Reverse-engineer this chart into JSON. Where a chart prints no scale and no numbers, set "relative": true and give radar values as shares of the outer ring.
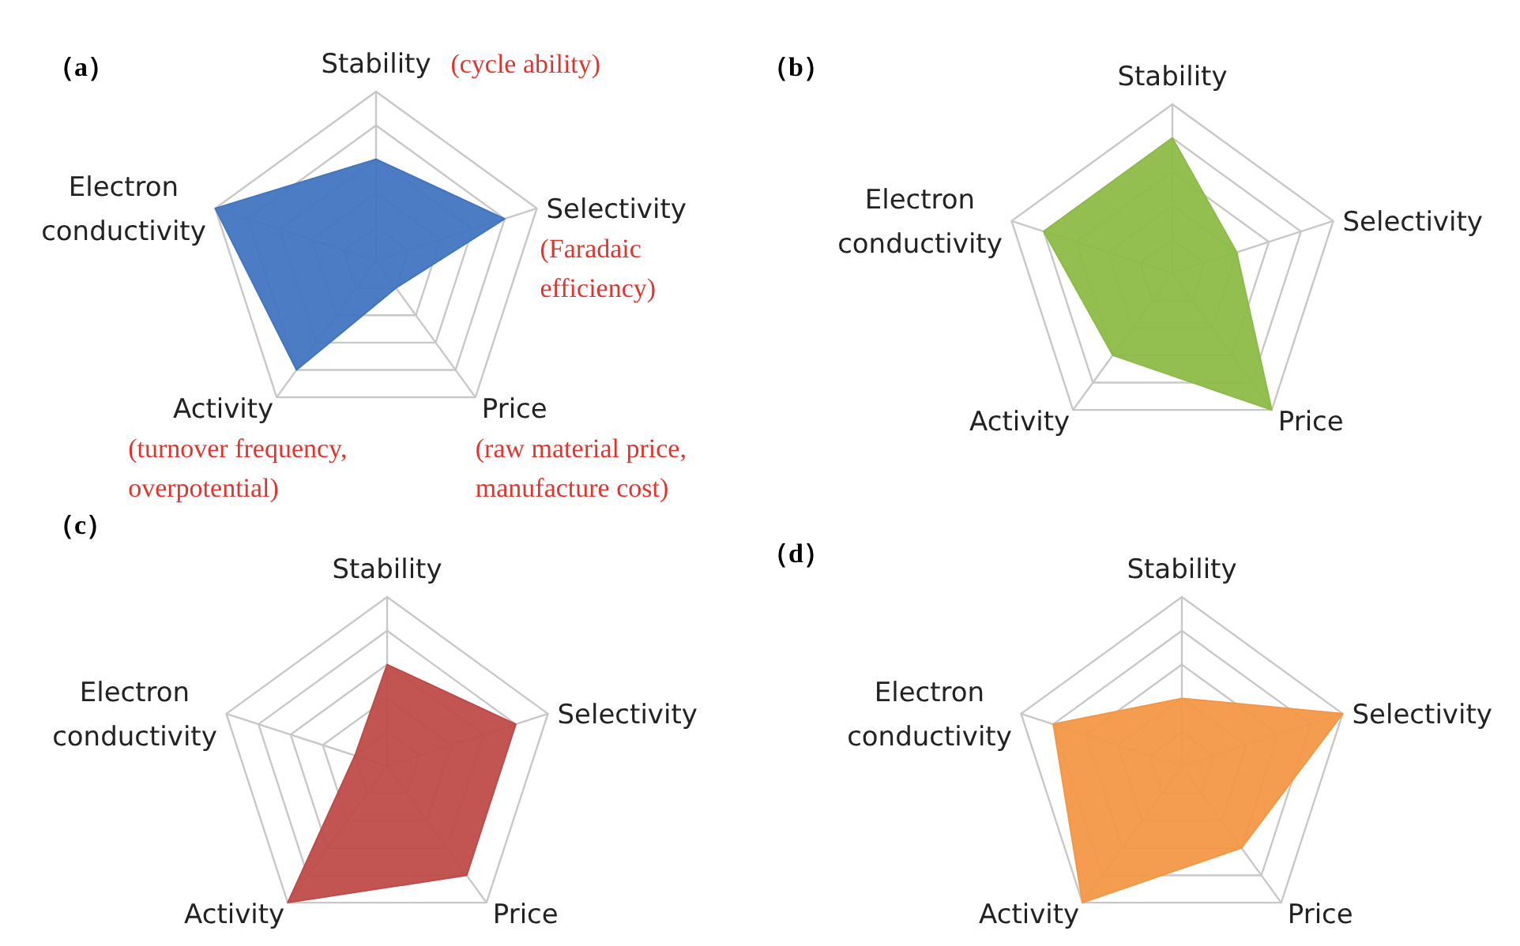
{
  "chart_data": [
    {
      "type": "radar",
      "title": "（a）",
      "categories": [
        "Stability",
        "Selectivity",
        "Price",
        "Activity",
        "Electron conductivity"
      ],
      "relative": true,
      "grid": true,
      "series": [
        {
          "color": "#4275c0",
          "values": [
            0.6,
            0.8,
            0.2,
            0.8,
            1
          ]
        }
      ],
      "annotations": [
        "(cycle ability)",
        "(Faradaic efficiency)",
        "(raw material price, manufacture cost)",
        "(turnover frequency, overpotential)"
      ]
    },
    {
      "type": "radar",
      "title": "（b）",
      "categories": [
        "Stability",
        "Selectivity",
        "Price",
        "Activity",
        "Electron conductivity"
      ],
      "relative": true,
      "grid": true,
      "series": [
        {
          "color": "#8dbb47",
          "values": [
            0.8,
            0.4,
            1,
            0.6,
            0.8
          ]
        }
      ]
    },
    {
      "type": "radar",
      "title": "（c）",
      "categories": [
        "Stability",
        "Selectivity",
        "Price",
        "Activity",
        "Electron conductivity"
      ],
      "relative": true,
      "grid": true,
      "series": [
        {
          "color": "#bf4b49",
          "values": [
            0.6,
            0.8,
            0.8,
            1,
            0.2
          ]
        }
      ]
    },
    {
      "type": "radar",
      "title": "（d）",
      "categories": [
        "Stability",
        "Selectivity",
        "Price",
        "Activity",
        "Electron conductivity"
      ],
      "relative": true,
      "grid": true,
      "series": [
        {
          "color": "#f39746",
          "values": [
            0.4,
            1,
            0.6,
            1,
            0.8
          ]
        }
      ]
    }
  ]
}
